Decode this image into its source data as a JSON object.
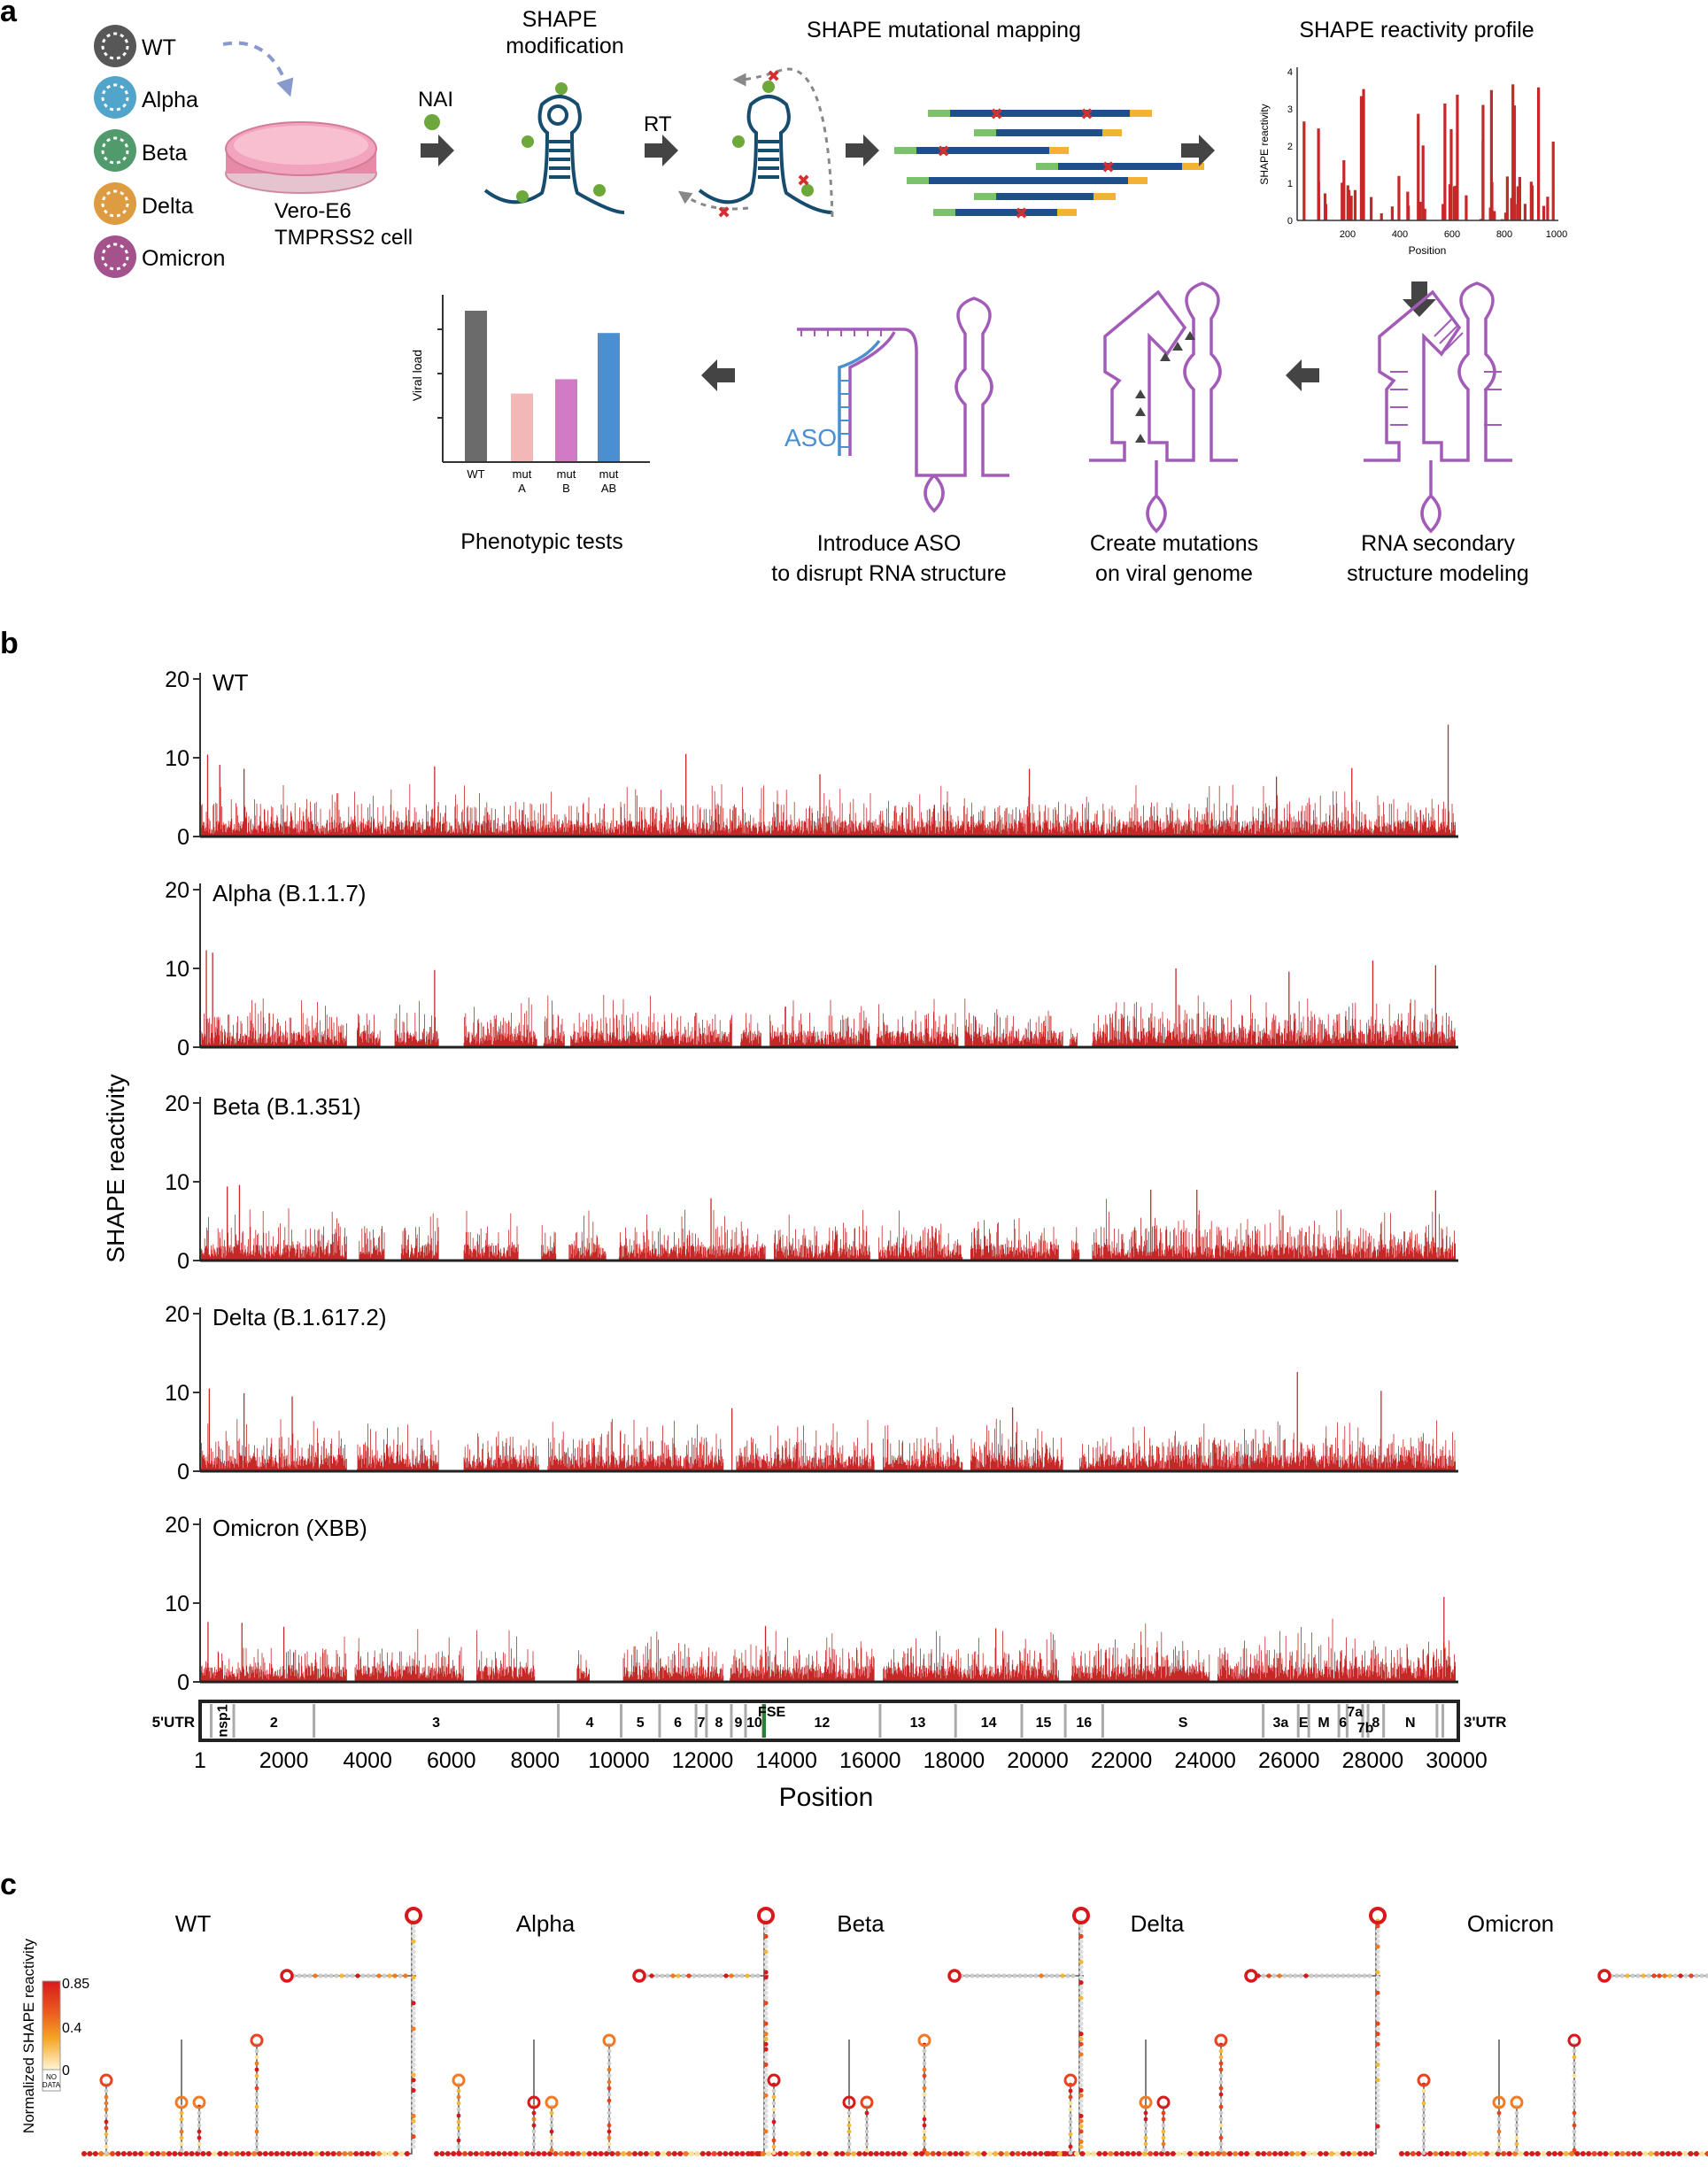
{
  "panel_a": {
    "label": "a",
    "variants": [
      "WT",
      "Alpha",
      "Beta",
      "Delta",
      "Omicron"
    ],
    "variant_colors": [
      "#3a3a3a",
      "#3f9bc4",
      "#3d8f5c",
      "#d9902e",
      "#9a3f7f"
    ],
    "cell_line": [
      "Vero-E6",
      "TMPRSS2 cell"
    ],
    "shape_mod_title": [
      "SHAPE",
      "modification"
    ],
    "nai_label": "NAI",
    "rt_label": "RT",
    "mut_map_title": "SHAPE mutational mapping",
    "profile_title": "SHAPE reactivity profile",
    "profile_ylabel": "SHAPE reactivity",
    "profile_xlabel": "Position",
    "profile_yticks": [
      "0",
      "1",
      "2",
      "3",
      "4"
    ],
    "profile_xticks": [
      "200",
      "400",
      "600",
      "800",
      "1000"
    ],
    "step_labels": {
      "modeling": [
        "RNA secondary",
        "structure modeling"
      ],
      "mutations": [
        "Create mutations",
        "on viral genome"
      ],
      "aso": [
        "Introduce ASO",
        "to disrupt RNA structure"
      ],
      "pheno": [
        "Phenotypic tests"
      ]
    },
    "aso_label": "ASO",
    "viral_load_ylabel": "Viral load",
    "pheno_bars": [
      {
        "label": [
          "WT"
        ],
        "value": 0.95,
        "color": "#6b6b6b"
      },
      {
        "label": [
          "mut",
          "A"
        ],
        "value": 0.43,
        "color": "#f2b8b8"
      },
      {
        "label": [
          "mut",
          "B"
        ],
        "value": 0.52,
        "color": "#d07bc3"
      },
      {
        "label": [
          "mut",
          "AB"
        ],
        "value": 0.81,
        "color": "#4a8fd1"
      }
    ]
  },
  "panel_b": {
    "label": "b",
    "ylabel": "SHAPE reactivity",
    "xlabel": "Position",
    "bar_color": "#c62828"
  },
  "panel_c": {
    "label": "c",
    "variants": [
      "WT",
      "Alpha",
      "Beta",
      "Delta",
      "Omicron"
    ],
    "colorbar_label": "Normalized SHAPE reactivity",
    "colorbar_ticks": [
      "0.85",
      "0.4",
      "0"
    ],
    "nodata_label": [
      "NO",
      "DATA"
    ]
  },
  "chart_data": {
    "type": "bar",
    "x_range": [
      1,
      30000
    ],
    "x_ticks": [
      "1",
      "2000",
      "4000",
      "6000",
      "8000",
      "10000",
      "12000",
      "14000",
      "16000",
      "18000",
      "20000",
      "22000",
      "24000",
      "26000",
      "28000",
      "30000"
    ],
    "y_range": [
      0,
      22
    ],
    "y_ticks": [
      "0",
      "10",
      "20"
    ],
    "series": [
      {
        "name": "WT",
        "gaps": [],
        "peaks": [
          [
            180,
            10.4
          ],
          [
            470,
            9.1
          ],
          [
            1050,
            8.6
          ],
          [
            5600,
            8.9
          ],
          [
            11600,
            10.5
          ],
          [
            14800,
            7.9
          ],
          [
            19800,
            8.6
          ],
          [
            25700,
            7.6
          ],
          [
            27500,
            8.7
          ],
          [
            29800,
            14.2
          ]
        ]
      },
      {
        "name": "Alpha (B.1.1.7)",
        "gaps": [
          [
            3500,
            3750
          ],
          [
            4300,
            4650
          ],
          [
            5700,
            6300
          ],
          [
            8050,
            8200
          ],
          [
            8700,
            8850
          ],
          [
            12700,
            12900
          ],
          [
            13400,
            13600
          ],
          [
            16000,
            16150
          ],
          [
            18100,
            18250
          ],
          [
            20600,
            20750
          ],
          [
            20950,
            21300
          ]
        ],
        "peaks": [
          [
            150,
            12.3
          ],
          [
            300,
            12.0
          ],
          [
            5600,
            9.8
          ],
          [
            23300,
            10.0
          ],
          [
            26000,
            9.6
          ],
          [
            28000,
            11.0
          ],
          [
            29500,
            10.4
          ]
        ]
      },
      {
        "name": "Beta (B.1.351)",
        "gaps": [
          [
            3500,
            3800
          ],
          [
            4400,
            4800
          ],
          [
            5700,
            6300
          ],
          [
            7600,
            8150
          ],
          [
            8500,
            8800
          ],
          [
            9700,
            10000
          ],
          [
            13500,
            13700
          ],
          [
            16000,
            16200
          ],
          [
            18200,
            18400
          ],
          [
            20500,
            20800
          ],
          [
            21000,
            21300
          ]
        ],
        "peaks": [
          [
            650,
            9.4
          ],
          [
            940,
            9.6
          ],
          [
            12200,
            7.9
          ],
          [
            22700,
            9.0
          ],
          [
            23800,
            9.0
          ],
          [
            29500,
            8.9
          ]
        ]
      },
      {
        "name": "Delta (B.1.617.2)",
        "gaps": [
          [
            3500,
            3750
          ],
          [
            5700,
            6300
          ],
          [
            8100,
            8300
          ],
          [
            12500,
            12800
          ],
          [
            16100,
            16300
          ],
          [
            18200,
            18400
          ],
          [
            20600,
            21000
          ]
        ],
        "peaks": [
          [
            220,
            10.5
          ],
          [
            1050,
            9.9
          ],
          [
            2200,
            9.5
          ],
          [
            12700,
            8.0
          ],
          [
            19400,
            8.1
          ],
          [
            26200,
            12.6
          ],
          [
            28200,
            10.2
          ]
        ]
      },
      {
        "name": "Omicron (XBB)",
        "gaps": [
          [
            3500,
            3700
          ],
          [
            6300,
            6600
          ],
          [
            8000,
            9000
          ],
          [
            9300,
            10100
          ],
          [
            12500,
            12650
          ],
          [
            16100,
            16300
          ],
          [
            20500,
            20800
          ],
          [
            24100,
            24300
          ]
        ],
        "peaks": [
          [
            190,
            7.6
          ],
          [
            1000,
            7.5
          ],
          [
            2000,
            7.0
          ],
          [
            13500,
            7.1
          ],
          [
            19000,
            6.8
          ],
          [
            29700,
            10.8
          ]
        ]
      }
    ],
    "genome_map": {
      "left_label": "5'UTR",
      "right_label": "3'UTR",
      "boundaries": [
        266,
        805,
        2719,
        8554,
        10054,
        10972,
        11842,
        12091,
        12685,
        13024,
        13441,
        16236,
        18039,
        19620,
        20658,
        21552,
        25384,
        26220,
        26472,
        27191,
        27387,
        27759,
        27887,
        28259,
        29533,
        29674
      ],
      "labels": [
        {
          "text": "nsp1",
          "pos": 535,
          "rot": true
        },
        {
          "text": "2",
          "pos": 1762
        },
        {
          "text": "3",
          "pos": 5637
        },
        {
          "text": "4",
          "pos": 9304
        },
        {
          "text": "5",
          "pos": 10513
        },
        {
          "text": "6",
          "pos": 11407
        },
        {
          "text": "7",
          "pos": 11966
        },
        {
          "text": "8",
          "pos": 12388
        },
        {
          "text": "9",
          "pos": 12854
        },
        {
          "text": "10",
          "pos": 13232
        },
        {
          "text": "FSE",
          "pos": 13650,
          "top": true
        },
        {
          "text": "12",
          "pos": 14850
        },
        {
          "text": "13",
          "pos": 17137
        },
        {
          "text": "14",
          "pos": 18829
        },
        {
          "text": "15",
          "pos": 20139
        },
        {
          "text": "16",
          "pos": 21105
        },
        {
          "text": "S",
          "pos": 23468
        },
        {
          "text": "3a",
          "pos": 25802
        },
        {
          "text": "E",
          "pos": 26346
        },
        {
          "text": "M",
          "pos": 26831
        },
        {
          "text": "6",
          "pos": 27289
        },
        {
          "text": "7a",
          "pos": 27573,
          "top": true
        },
        {
          "text": "7b",
          "pos": 27823,
          "low": true
        },
        {
          "text": "8",
          "pos": 28073
        },
        {
          "text": "N",
          "pos": 28896
        }
      ]
    }
  }
}
